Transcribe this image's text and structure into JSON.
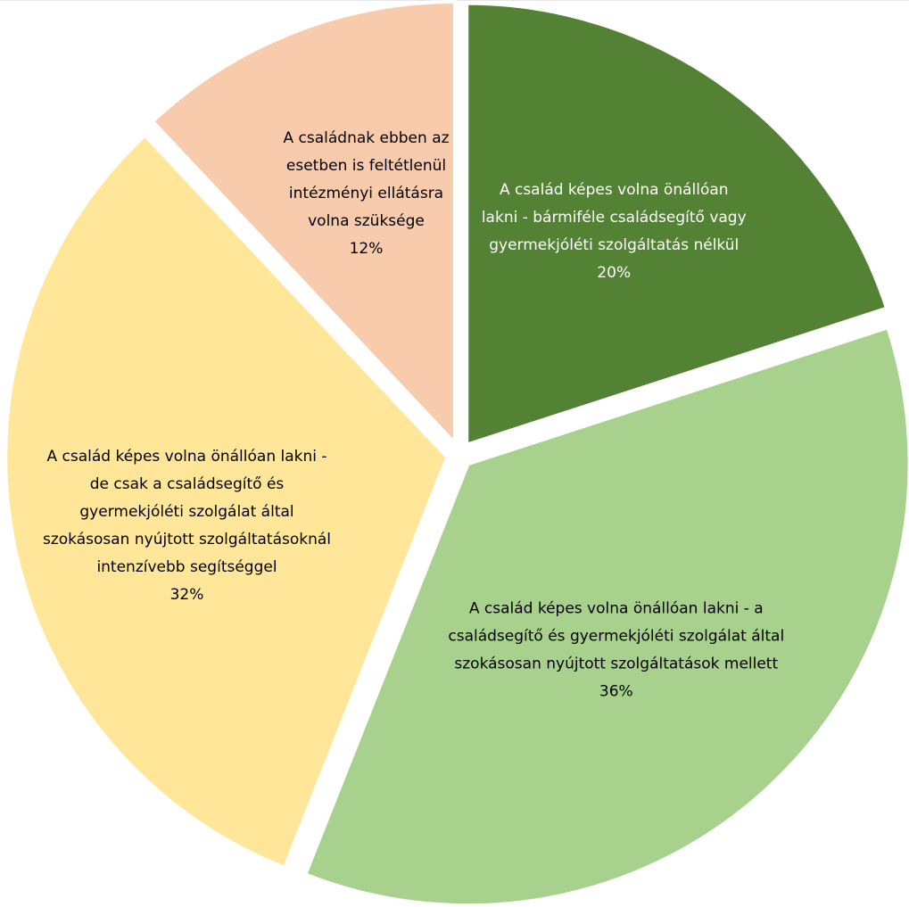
{
  "chart_data": {
    "type": "pie",
    "title": "",
    "slices": [
      {
        "label_lines": [
          "A család képes volna önállóan",
          "lakni - bármiféle családsegítő vagy",
          "gyermekjóléti szolgáltatás nélkül"
        ],
        "percent_label": "20%",
        "value": 20,
        "color": "#548235",
        "text_color": "#ffffff"
      },
      {
        "label_lines": [
          "A család képes volna önállóan lakni - a",
          "családsegítő és gyermekjóléti szolgálat által",
          "szokásosan nyújtott szolgáltatások mellett"
        ],
        "percent_label": "36%",
        "value": 36,
        "color": "#a9d18e",
        "text_color": "#000000"
      },
      {
        "label_lines": [
          "A család képes volna önállóan lakni -",
          "de csak a családsegítő és",
          "gyermekjóléti szolgálat által",
          "szokásosan nyújtott szolgáltatásoknál",
          "intenzívebb segítséggel"
        ],
        "percent_label": "32%",
        "value": 32,
        "color": "#ffe699",
        "text_color": "#000000"
      },
      {
        "label_lines": [
          "A családnak ebben az",
          "esetben is feltétlenül",
          "intézményi ellátásra",
          "volna szüksége"
        ],
        "percent_label": "12%",
        "value": 12,
        "color": "#f8cbad",
        "text_color": "#000000"
      }
    ],
    "legend": "none"
  }
}
